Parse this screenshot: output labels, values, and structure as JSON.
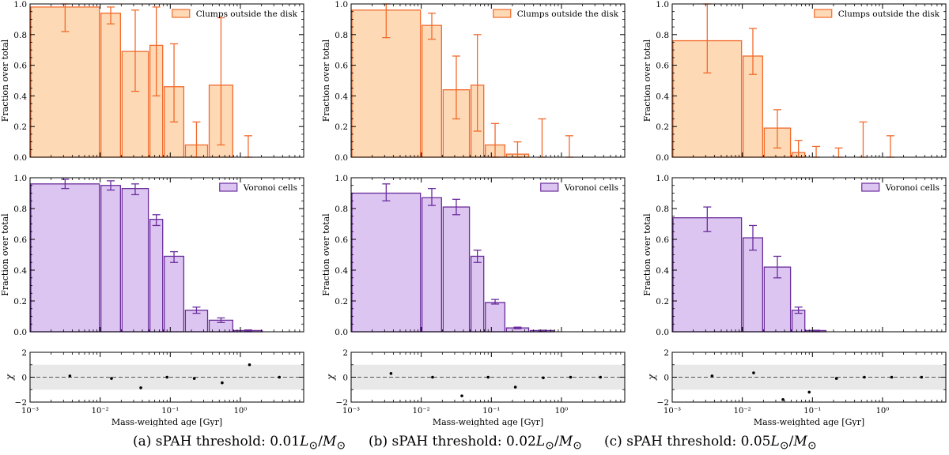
{
  "common": {
    "xlabel": "Mass-weighted age [Gyr]",
    "ylabel_fraction": "Fraction over total",
    "ylabel_chi": "χ",
    "frac_ticks": [
      "0.0",
      "0.2",
      "0.4",
      "0.6",
      "0.8",
      "1.0"
    ],
    "chi_ticks": [
      "−2",
      "0",
      "2"
    ],
    "x_tick_labels": [
      "10⁻³",
      "10⁻²",
      "10⁻¹",
      "10⁰"
    ],
    "bin_edges_gyr": [
      0.001,
      0.01,
      0.02,
      0.05,
      0.08,
      0.16,
      0.35,
      0.8,
      2.1,
      6.0
    ],
    "xlim_gyr": [
      0.001,
      8.0
    ]
  },
  "colors": {
    "clumps_fill": "#fdd9b5",
    "clumps_edge": "#f26a2b",
    "voronoi_fill": "#dcc5f0",
    "voronoi_edge": "#6a2c9c",
    "band": "#e8e8e8"
  },
  "chart_data": [
    {
      "type": "bar",
      "panel": "a",
      "caption": "(a) sPAH threshold: 0.01",
      "clumps": {
        "legend": "Clumps outside the disk",
        "values": [
          0.98,
          0.94,
          0.69,
          0.73,
          0.46,
          0.08,
          0.47,
          0.0,
          0.0
        ],
        "err_low": [
          0.82,
          0.87,
          0.43,
          0.4,
          0.23,
          0.0,
          0.08,
          0.0,
          0.0
        ],
        "err_high": [
          1.0,
          0.98,
          0.96,
          0.98,
          0.74,
          0.23,
          0.91,
          0.14,
          0.0
        ],
        "ylim": [
          0,
          1
        ]
      },
      "voronoi": {
        "legend": "Voronoi cells",
        "values": [
          0.96,
          0.95,
          0.93,
          0.73,
          0.49,
          0.14,
          0.075,
          0.008,
          0.0
        ],
        "err_low": [
          0.93,
          0.92,
          0.89,
          0.69,
          0.45,
          0.12,
          0.06,
          0.004,
          0.0
        ],
        "err_high": [
          0.99,
          0.98,
          0.96,
          0.76,
          0.52,
          0.16,
          0.09,
          0.012,
          0.0
        ],
        "ylim": [
          0,
          1
        ]
      },
      "chi": {
        "x_gyr": [
          0.0037,
          0.0145,
          0.038,
          0.09,
          0.22,
          0.55,
          1.35,
          3.6
        ],
        "values": [
          0.1,
          -0.1,
          -0.85,
          0.0,
          -0.1,
          -0.45,
          1.0,
          0.0
        ],
        "ylim": [
          -2,
          2
        ],
        "band": [
          -1,
          1
        ]
      }
    },
    {
      "type": "bar",
      "panel": "b",
      "caption": "(b) sPAH threshold: 0.02",
      "clumps": {
        "legend": "Clumps outside the disk",
        "values": [
          0.96,
          0.86,
          0.44,
          0.47,
          0.08,
          0.02,
          0.0,
          0.0,
          0.0
        ],
        "err_low": [
          0.78,
          0.77,
          0.25,
          0.17,
          0.0,
          0.0,
          0.0,
          0.0,
          0.0
        ],
        "err_high": [
          1.0,
          0.94,
          0.66,
          0.8,
          0.22,
          0.1,
          0.25,
          0.14,
          0.0
        ],
        "ylim": [
          0,
          1
        ]
      },
      "voronoi": {
        "legend": "Voronoi cells",
        "values": [
          0.9,
          0.87,
          0.81,
          0.49,
          0.19,
          0.025,
          0.008,
          0.0,
          0.0
        ],
        "err_low": [
          0.85,
          0.82,
          0.76,
          0.45,
          0.18,
          0.02,
          0.005,
          0.0,
          0.0
        ],
        "err_high": [
          0.96,
          0.93,
          0.86,
          0.53,
          0.21,
          0.03,
          0.01,
          0.0,
          0.0
        ],
        "ylim": [
          0,
          1
        ]
      },
      "chi": {
        "x_gyr": [
          0.0037,
          0.0145,
          0.038,
          0.09,
          0.22,
          0.55,
          1.35,
          3.6
        ],
        "values": [
          0.3,
          0.0,
          -1.5,
          0.0,
          -0.8,
          -0.05,
          0.0,
          0.0
        ],
        "ylim": [
          -2,
          2
        ],
        "band": [
          -1,
          1
        ]
      }
    },
    {
      "type": "bar",
      "panel": "c",
      "caption": "(c) sPAH threshold: 0.05",
      "clumps": {
        "legend": "Clumps outside the disk",
        "values": [
          0.76,
          0.66,
          0.19,
          0.03,
          0.0,
          0.0,
          0.0,
          0.0,
          0.0
        ],
        "err_low": [
          0.55,
          0.54,
          0.06,
          0.0,
          0.0,
          0.0,
          0.0,
          0.0,
          0.0
        ],
        "err_high": [
          1.0,
          0.84,
          0.31,
          0.11,
          0.07,
          0.06,
          0.23,
          0.14,
          0.0
        ],
        "ylim": [
          0,
          1
        ]
      },
      "voronoi": {
        "legend": "Voronoi cells",
        "values": [
          0.74,
          0.61,
          0.42,
          0.14,
          0.008,
          0.0,
          0.0,
          0.0,
          0.0
        ],
        "err_low": [
          0.65,
          0.53,
          0.35,
          0.12,
          0.005,
          0.0,
          0.0,
          0.0,
          0.0
        ],
        "err_high": [
          0.81,
          0.69,
          0.49,
          0.16,
          0.01,
          0.0,
          0.0,
          0.0,
          0.0
        ],
        "ylim": [
          0,
          1
        ]
      },
      "chi": {
        "x_gyr": [
          0.0037,
          0.0145,
          0.038,
          0.09,
          0.22,
          0.55,
          1.35,
          3.6
        ],
        "values": [
          0.1,
          0.35,
          -1.8,
          -1.2,
          -0.1,
          0.0,
          0.0,
          0.0
        ],
        "ylim": [
          -2,
          2
        ],
        "band": [
          -1,
          1
        ]
      }
    }
  ],
  "captions": [
    {
      "text": "(a) sPAH threshold: 0.01",
      "L": "L",
      "sun": "⊙",
      "M": "M",
      "sun2": "⊙",
      "slash": "/"
    },
    {
      "text": "(b) sPAH threshold: 0.02",
      "L": "L",
      "sun": "⊙",
      "M": "M",
      "sun2": "⊙",
      "slash": "/"
    },
    {
      "text": "(c) sPAH threshold: 0.05",
      "L": "L",
      "sun": "⊙",
      "M": "M",
      "sun2": "⊙",
      "slash": "/"
    }
  ]
}
